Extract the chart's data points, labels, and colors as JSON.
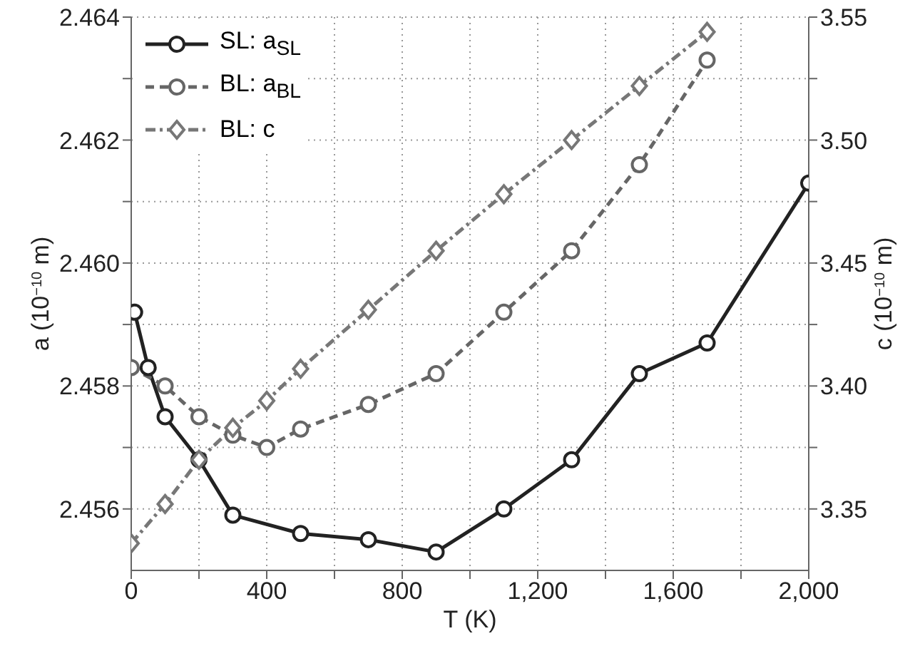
{
  "chart_data": {
    "type": "line",
    "xlabel": "T (K)",
    "ylabel": "a (10$^{−10}$ m)",
    "y2label": "c (10$^{−10}$ m)",
    "xlim": [
      0,
      2000
    ],
    "xticks": [
      0,
      {
        "value": 200,
        "label": null
      },
      400,
      {
        "value": 600,
        "label": null
      },
      800,
      {
        "value": 1000,
        "label": null
      },
      {
        "value": 1200,
        "label": "1,200"
      },
      {
        "value": 1400,
        "label": null
      },
      {
        "value": 1600,
        "label": "1,600"
      },
      {
        "value": 1800,
        "label": null
      },
      {
        "value": 2000,
        "label": "2,000"
      }
    ],
    "ylim": [
      2.455,
      2.464
    ],
    "yticks": [
      2.456,
      {
        "value": 2.457,
        "label": null
      },
      2.458,
      {
        "value": 2.459,
        "label": null
      },
      {
        "value": 2.46,
        "label": "2.460"
      },
      {
        "value": 2.461,
        "label": null
      },
      2.462,
      {
        "value": 2.463,
        "label": null
      },
      2.464
    ],
    "y2lim": [
      3.325,
      3.55
    ],
    "y2ticks": [
      {
        "value": 3.35,
        "label": "3.35"
      },
      {
        "value": 3.375,
        "label": null
      },
      {
        "value": 3.4,
        "label": "3.40"
      },
      {
        "value": 3.425,
        "label": null
      },
      {
        "value": 3.45,
        "label": "3.45"
      },
      {
        "value": 3.475,
        "label": null
      },
      {
        "value": 3.5,
        "label": "3.50"
      },
      {
        "value": 3.525,
        "label": null
      },
      {
        "value": 3.55,
        "label": "3.55"
      }
    ],
    "grid": true,
    "legend": "top left",
    "series": [
      {
        "name": "SL: a$_{SL}$",
        "color": "#222222",
        "marker": "circle",
        "line_style": "solid",
        "x": [
          10,
          50,
          100,
          200,
          300,
          500,
          700,
          900,
          1100,
          1300,
          1500,
          1700,
          2000
        ],
        "values": [
          2.4592,
          2.4583,
          2.4575,
          2.4568,
          2.4559,
          2.4556,
          2.4555,
          2.4553,
          2.456,
          2.4568,
          2.4582,
          2.4587,
          2.4613
        ]
      },
      {
        "name": "BL: a$_{BL}$",
        "color": "#666666",
        "marker": "circle",
        "line_style": "dashed",
        "x": [
          0,
          100,
          200,
          300,
          400,
          500,
          700,
          900,
          1100,
          1300,
          1500,
          1700
        ],
        "values": [
          2.4583,
          2.458,
          2.4575,
          2.4572,
          2.457,
          2.4573,
          2.4577,
          2.4582,
          2.4592,
          2.4602,
          2.4616,
          2.4633
        ]
      },
      {
        "name": "BL: c",
        "color": "#777777",
        "marker": "diamond",
        "line_style": "dashdot",
        "axis": "y2",
        "x": [
          0,
          100,
          200,
          300,
          400,
          500,
          700,
          900,
          1100,
          1300,
          1500,
          1700
        ],
        "values": [
          3.336,
          3.352,
          3.37,
          3.383,
          3.394,
          3.407,
          3.431,
          3.455,
          3.478,
          3.5,
          3.522,
          3.544
        ]
      }
    ]
  }
}
